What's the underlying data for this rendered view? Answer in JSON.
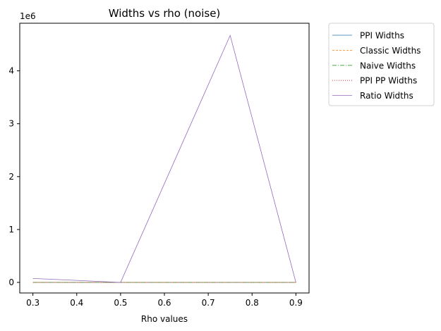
{
  "chart_data": {
    "type": "line",
    "title": "Widths vs rho (noise)",
    "xlabel": "Rho values",
    "ylabel": "",
    "y_offset_label": "1e6",
    "x": [
      0.3,
      0.5,
      0.75,
      0.9
    ],
    "xlim": [
      0.27,
      0.93
    ],
    "ylim": [
      -200000,
      4900000
    ],
    "xticks": [
      0.3,
      0.4,
      0.5,
      0.6,
      0.7,
      0.8,
      0.9
    ],
    "xtick_labels": [
      "0.3",
      "0.4",
      "0.5",
      "0.6",
      "0.7",
      "0.8",
      "0.9"
    ],
    "yticks": [
      0,
      1000000,
      2000000,
      3000000,
      4000000
    ],
    "ytick_labels": [
      "0",
      "1",
      "2",
      "3",
      "4"
    ],
    "grid": false,
    "legend_position": "outside-top-right",
    "series": [
      {
        "name": "PPI Widths",
        "values": [
          0,
          0,
          0,
          0
        ],
        "color": "#1f77b4",
        "dash": "solid"
      },
      {
        "name": "Classic Widths",
        "values": [
          0,
          0,
          0,
          0
        ],
        "color": "#ff7f0e",
        "dash": "dashed"
      },
      {
        "name": "Naive Widths",
        "values": [
          0,
          0,
          0,
          0
        ],
        "color": "#2ca02c",
        "dash": "dashdot"
      },
      {
        "name": "PPI PP Widths",
        "values": [
          0,
          0,
          0,
          0
        ],
        "color": "#d62728",
        "dash": "dotted"
      },
      {
        "name": "Ratio Widths",
        "values": [
          75000,
          0,
          4670000,
          0
        ],
        "color": "#9467bd",
        "dash": "solid"
      }
    ]
  }
}
